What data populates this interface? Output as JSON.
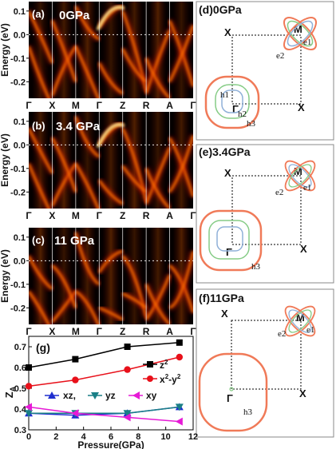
{
  "colors": {
    "band_bg": "#050000",
    "band_hot": "#ffe08a",
    "band_warm": "#ff7a00",
    "band_red": "#cc1a00",
    "fs_orange": "#f07a58",
    "fs_green": "#86cc86",
    "fs_blue": "#8fb0d8",
    "series_z2": "#000000",
    "series_x2y2": "#e8101a",
    "series_xz": "#1f2fcf",
    "series_yz": "#1a7f86",
    "series_xy": "#e61ad6"
  },
  "band_panels": [
    {
      "label": "(a)",
      "pressure": "0GPa"
    },
    {
      "label": "(b)",
      "pressure": "3.4 GPa"
    },
    {
      "label": "(c)",
      "pressure": "11 GPa"
    }
  ],
  "band_axis": {
    "ylabel": "Energy (eV)",
    "yticks": [
      "0.1",
      "0.0",
      "-0.1",
      "-0.2"
    ],
    "kpoints": [
      "Γ",
      "X",
      "M",
      "Γ",
      "Z",
      "R",
      "A",
      "Γ"
    ]
  },
  "fs_panels": [
    {
      "label": "(d)0GPa",
      "X_top": "X",
      "X_bottom": "X",
      "M": "M",
      "Gamma": "Γ",
      "pockets": {
        "e1": "e1",
        "e2": "e2",
        "h1": "h1",
        "h2": "h2",
        "h3": "h3"
      }
    },
    {
      "label": "(e)3.4GPa",
      "X_top": "X",
      "X_bottom": "X",
      "M": "M",
      "Gamma": "Γ",
      "pockets": {
        "e1": "e1",
        "e2": "e2",
        "h3": "h3"
      }
    },
    {
      "label": "(f)11GPa",
      "X_top": "X",
      "X_bottom": "X",
      "M": "M",
      "Gamma": "Γ",
      "pockets": {
        "e1": "e1",
        "e2": "e2",
        "h3": "h3"
      }
    }
  ],
  "chart_data": {
    "type": "line",
    "panel_label": "(g)",
    "title": "",
    "xlabel": "Pressure(GPa)",
    "ylabel": "Z_A",
    "xlim": [
      0,
      12
    ],
    "ylim": [
      0.3,
      0.75
    ],
    "xticks": [
      0,
      2,
      4,
      6,
      8,
      10,
      12
    ],
    "yticks": [
      0.3,
      0.4,
      0.5,
      0.6,
      0.7
    ],
    "x": [
      0,
      3.4,
      7.2,
      11
    ],
    "legend_placement": "right and bottom",
    "series": [
      {
        "key": "z2",
        "name": "z",
        "sup": "2",
        "marker": "square",
        "color": "#000000",
        "values": [
          0.6,
          0.64,
          0.7,
          0.72
        ]
      },
      {
        "key": "x2y2",
        "name": "x",
        "sup": "2",
        "name2": "-y",
        "sup2": "2",
        "marker": "circle",
        "color": "#e8101a",
        "values": [
          0.51,
          0.54,
          0.59,
          0.65
        ]
      },
      {
        "key": "xz",
        "name": "xz,",
        "marker": "triangle-up",
        "color": "#1f2fcf",
        "values": [
          0.38,
          0.37,
          0.38,
          0.41
        ]
      },
      {
        "key": "yz",
        "name": "yz",
        "marker": "triangle-down",
        "color": "#1a7f86",
        "values": [
          0.38,
          0.38,
          0.38,
          0.41
        ]
      },
      {
        "key": "xy",
        "name": "xy",
        "marker": "triangle-left",
        "color": "#e61ad6",
        "values": [
          0.41,
          0.38,
          0.36,
          0.34
        ]
      }
    ]
  }
}
